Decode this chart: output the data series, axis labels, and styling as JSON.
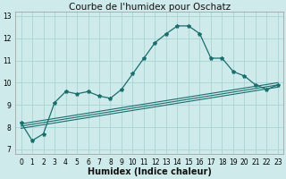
{
  "title": "Courbe de l'humidex pour Oschatz",
  "xlabel": "Humidex (Indice chaleur)",
  "bg_color": "#ceeaea",
  "grid_color": "#a8d4d4",
  "line_color": "#1a6e6e",
  "xlim": [
    -0.5,
    23.5
  ],
  "ylim": [
    6.8,
    13.2
  ],
  "yticks": [
    7,
    8,
    9,
    10,
    11,
    12,
    13
  ],
  "xticks": [
    0,
    1,
    2,
    3,
    4,
    5,
    6,
    7,
    8,
    9,
    10,
    11,
    12,
    13,
    14,
    15,
    16,
    17,
    18,
    19,
    20,
    21,
    22,
    23
  ],
  "line1_x": [
    0,
    1,
    2,
    3,
    4,
    5,
    6,
    7,
    8,
    9,
    10,
    11,
    12,
    13,
    14,
    15,
    16,
    17,
    18,
    19,
    20,
    21,
    22,
    23
  ],
  "line1_y": [
    8.2,
    7.4,
    7.7,
    9.1,
    9.6,
    9.5,
    9.6,
    9.4,
    9.3,
    9.7,
    10.4,
    11.1,
    11.8,
    12.2,
    12.55,
    12.55,
    12.2,
    11.1,
    11.1,
    10.5,
    10.3,
    9.9,
    9.7,
    9.9
  ],
  "line2_x": [
    0,
    23
  ],
  "line2_y": [
    8.15,
    10.0
  ],
  "line3_x": [
    0,
    23
  ],
  "line3_y": [
    8.05,
    9.9
  ],
  "line4_x": [
    0,
    23
  ],
  "line4_y": [
    7.95,
    9.8
  ],
  "title_fontsize": 7.5,
  "tick_fontsize": 5.5,
  "label_fontsize": 7.0
}
